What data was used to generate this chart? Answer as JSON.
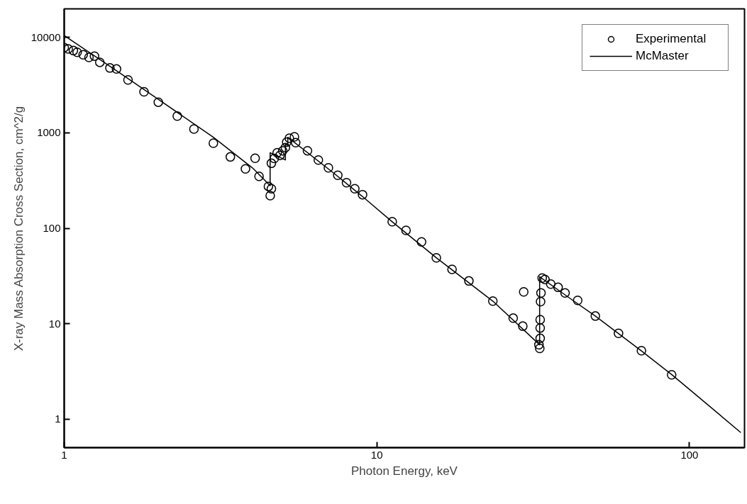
{
  "chart_data": {
    "type": "scatter",
    "xlabel": "Photon Energy, keV",
    "ylabel": "X-ray Mass Absorption Cross Section, cm^2/g",
    "log": "xy",
    "grid": false,
    "legend": "top right",
    "xlim": [
      1,
      150
    ],
    "ylim": [
      0.5,
      20000
    ],
    "xticks": [
      1,
      10,
      100
    ],
    "yticks": [
      1,
      10,
      100,
      1000,
      10000
    ],
    "series": [
      {
        "name": "Experimental",
        "marker": "circle",
        "color": "#000000",
        "x": [
          1.0,
          1.03,
          1.07,
          1.1,
          1.15,
          1.2,
          1.25,
          1.3,
          1.4,
          1.47,
          1.6,
          1.8,
          2.0,
          2.3,
          2.6,
          3.0,
          3.4,
          3.8,
          4.08,
          4.2,
          4.5,
          4.56,
          4.6,
          4.6,
          4.7,
          4.8,
          4.9,
          5.0,
          5.1,
          5.15,
          5.25,
          5.45,
          5.5,
          6.0,
          6.5,
          7.0,
          7.5,
          8.0,
          8.5,
          9.0,
          11.2,
          12.4,
          13.9,
          15.5,
          17.4,
          19.7,
          23.5,
          27.3,
          29.3,
          29.5,
          33.0,
          33.2,
          33.3,
          33.3,
          33.3,
          33.4,
          33.5,
          33.8,
          34.5,
          36,
          38,
          40,
          43.9,
          50,
          59.3,
          70.2,
          87.7
        ],
        "values": [
          7850,
          7600,
          7300,
          7000,
          6600,
          6200,
          6390,
          5500,
          4800,
          4680,
          3600,
          2700,
          2100,
          1500,
          1100,
          780,
          560,
          420,
          542,
          350,
          275,
          220,
          260,
          480,
          540,
          620,
          580,
          650,
          700,
          800,
          880,
          910,
          790,
          650,
          520,
          430,
          360,
          300,
          260,
          225,
          117,
          95,
          72,
          49,
          37,
          28,
          17.2,
          11.4,
          9.4,
          21.5,
          6.0,
          5.5,
          7,
          9,
          11,
          17,
          21,
          30,
          29,
          26,
          24,
          21,
          17.5,
          12,
          7.9,
          5.2,
          2.9
        ]
      },
      {
        "name": "McMaster",
        "type": "line",
        "marker": "none",
        "line_style": "solid",
        "color": "#000000",
        "x": [
          1,
          1.5,
          2,
          3,
          4,
          4.557,
          4.557,
          5.1,
          5.1,
          5.19,
          5.19,
          7.27,
          9,
          11.2,
          15.5,
          23.5,
          33.17,
          33.17,
          40.9,
          50,
          70,
          88,
          146
        ],
        "values": [
          10500,
          4300,
          2250,
          900,
          430,
          280,
          620,
          520,
          760,
          740,
          900,
          380,
          215,
          117,
          49,
          17.2,
          6.0,
          31,
          19,
          12,
          5.2,
          2.9,
          0.72
        ]
      }
    ]
  }
}
